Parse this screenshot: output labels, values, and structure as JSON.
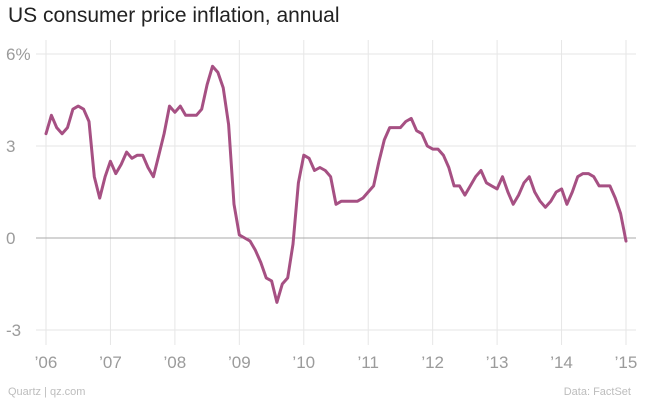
{
  "title": "US consumer price inflation, annual",
  "footer": {
    "source_left": "Quartz | qz.com",
    "source_right": "Data: FactSet"
  },
  "colors": {
    "line": "#a65083",
    "grid": "#e6e6e6",
    "zero": "#a9a9a9",
    "tick": "#9b9b9b"
  },
  "chart_data": {
    "type": "line",
    "title": "US consumer price inflation, annual",
    "xlabel": "",
    "ylabel": "",
    "ylim": [
      -3,
      6
    ],
    "xlim": [
      2006,
      2015
    ],
    "grid": true,
    "y_ticks": [
      {
        "value": 6,
        "label": "6%"
      },
      {
        "value": 3,
        "label": "3"
      },
      {
        "value": 0,
        "label": "0"
      },
      {
        "value": -3,
        "label": "-3"
      }
    ],
    "x_ticks": [
      {
        "value": 2006,
        "label": "’06"
      },
      {
        "value": 2007,
        "label": "’07"
      },
      {
        "value": 2008,
        "label": "’08"
      },
      {
        "value": 2009,
        "label": "’09"
      },
      {
        "value": 2010,
        "label": "’10"
      },
      {
        "value": 2011,
        "label": "’11"
      },
      {
        "value": 2012,
        "label": "’12"
      },
      {
        "value": 2013,
        "label": "’13"
      },
      {
        "value": 2014,
        "label": "’14"
      },
      {
        "value": 2015,
        "label": "’15"
      }
    ],
    "series": [
      {
        "values": [
          3.4,
          4.0,
          3.6,
          3.4,
          3.6,
          4.2,
          4.3,
          4.2,
          3.8,
          2.0,
          1.3,
          2.0,
          2.5,
          2.1,
          2.4,
          2.8,
          2.6,
          2.7,
          2.7,
          2.3,
          2.0,
          2.7,
          3.4,
          4.3,
          4.1,
          4.3,
          4.0,
          4.0,
          4.0,
          4.2,
          5.0,
          5.6,
          5.4,
          4.9,
          3.7,
          1.1,
          0.1,
          0.0,
          -0.1,
          -0.4,
          -0.8,
          -1.3,
          -1.4,
          -2.1,
          -1.5,
          -1.3,
          -0.2,
          1.8,
          2.7,
          2.6,
          2.2,
          2.3,
          2.2,
          2.0,
          1.1,
          1.2,
          1.2,
          1.2,
          1.2,
          1.3,
          1.5,
          1.7,
          2.5,
          3.2,
          3.6,
          3.6,
          3.6,
          3.8,
          3.9,
          3.5,
          3.4,
          3.0,
          2.9,
          2.9,
          2.7,
          2.3,
          1.7,
          1.7,
          1.4,
          1.7,
          2.0,
          2.2,
          1.8,
          1.7,
          1.6,
          2.0,
          1.5,
          1.1,
          1.4,
          1.8,
          2.0,
          1.5,
          1.2,
          1.0,
          1.2,
          1.5,
          1.6,
          1.1,
          1.5,
          2.0,
          2.1,
          2.1,
          2.0,
          1.7,
          1.7,
          1.7,
          1.3,
          0.8,
          -0.1
        ],
        "start": "2006-01",
        "frequency": "monthly"
      }
    ]
  }
}
